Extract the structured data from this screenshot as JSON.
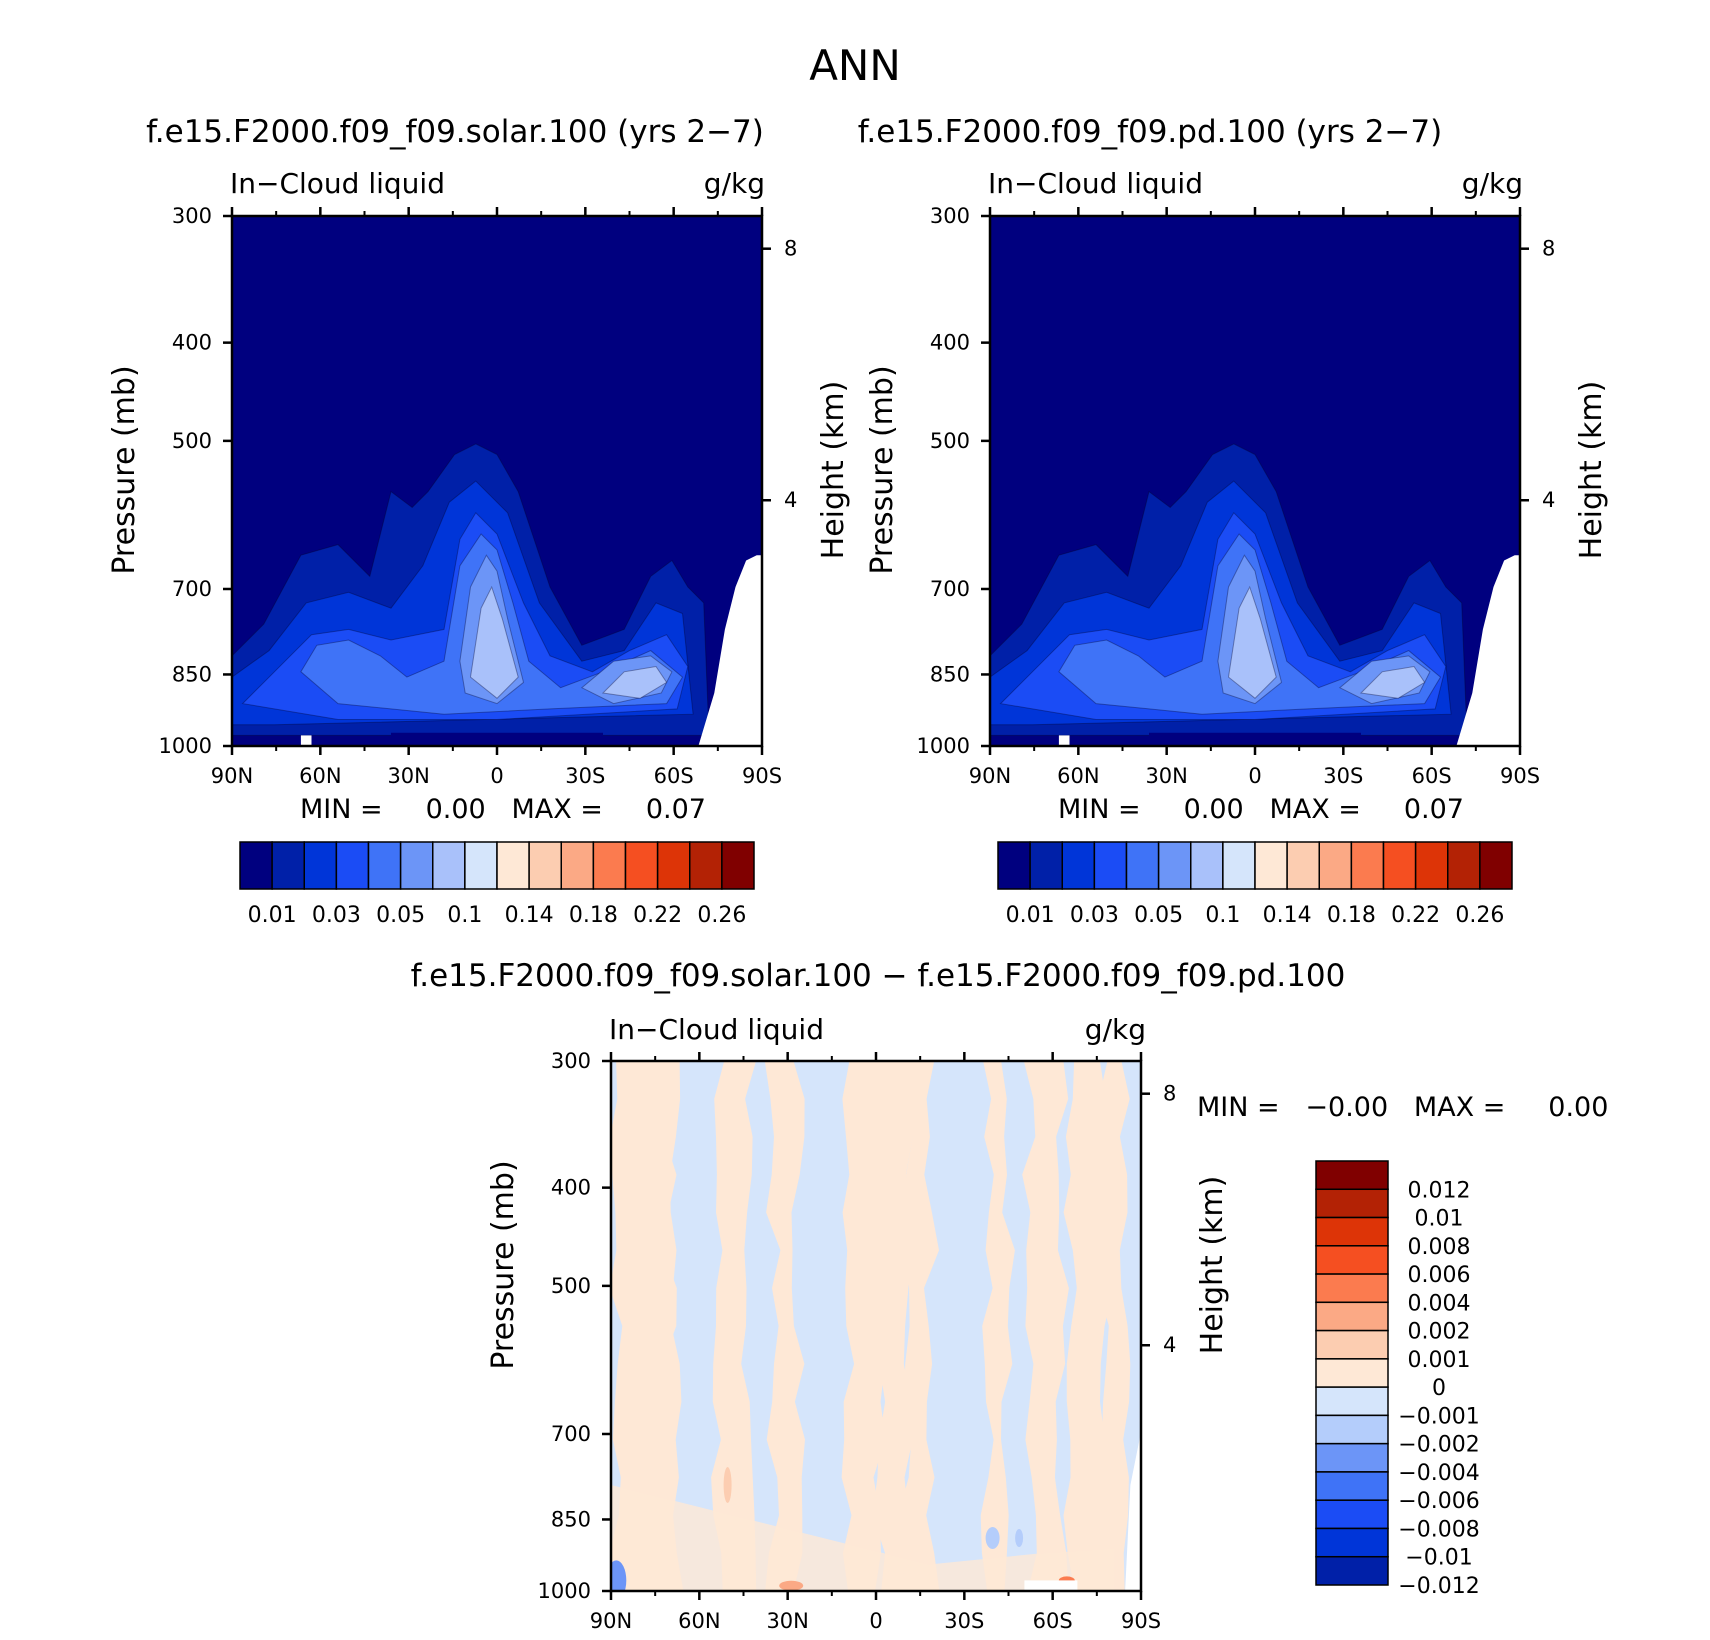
{
  "figure_title": "ANN",
  "colors": {
    "seq": [
      "#00007f",
      "#0020a8",
      "#0035d8",
      "#1b4cf5",
      "#3f73f7",
      "#6c95f7",
      "#a9c1fa",
      "#d5e5fb",
      "#fee8d6",
      "#fccdb1",
      "#fba985",
      "#fb7b4f",
      "#f54f21",
      "#dd3407",
      "#b32205",
      "#800000"
    ],
    "div": [
      "#00007f",
      "#0020a8",
      "#0035d8",
      "#1b4cf5",
      "#3f73f7",
      "#6c95f7",
      "#b4cdfb",
      "#d5e5fb",
      "#fee8d6",
      "#fccdb1",
      "#fba985",
      "#fb7b4f",
      "#f54f21",
      "#dd3407",
      "#b32205",
      "#800000"
    ]
  },
  "panels": {
    "p1": {
      "title": "f.e15.F2000.f09_f09.solar.100 (yrs 2−7)",
      "left_label": "In−Cloud liquid",
      "right_label": "g/kg",
      "ylabel": "Pressure (mb)",
      "ylabel_right": "Height (km)",
      "minmax": "MIN =     0.00   MAX =     0.07"
    },
    "p2": {
      "title": "f.e15.F2000.f09_f09.pd.100 (yrs 2−7)",
      "left_label": "In−Cloud liquid",
      "right_label": "g/kg",
      "ylabel": "Pressure (mb)",
      "ylabel_right": "Height (km)",
      "minmax": "MIN =     0.00   MAX =     0.07"
    },
    "p3": {
      "title": "f.e15.F2000.f09_f09.solar.100 − f.e15.F2000.f09_f09.pd.100",
      "left_label": "In−Cloud liquid",
      "right_label": "g/kg",
      "ylabel": "Pressure (mb)",
      "ylabel_right": "Height (km)",
      "minmax": "MIN =   −0.00   MAX =     0.00"
    }
  },
  "chart_data": [
    {
      "type": "heatmap",
      "title": "f.e15.F2000.f09_f09.solar.100 (yrs 2−7)",
      "xlabel": "",
      "ylabel": "Pressure (mb)",
      "ylabel_right": "Height (km)",
      "x_ticks": [
        "90N",
        "60N",
        "30N",
        "0",
        "30S",
        "60S",
        "90S"
      ],
      "y_ticks": [
        300,
        400,
        500,
        700,
        850,
        1000
      ],
      "y_right_ticks": [
        8,
        4
      ],
      "ylim": [
        1000,
        300
      ],
      "units": "g/kg",
      "min": 0.0,
      "max": 0.07,
      "levels": [
        "0.01",
        "0.03",
        "0.05",
        "0.1",
        "0.14",
        "0.18",
        "0.22",
        "0.26"
      ]
    },
    {
      "type": "heatmap",
      "title": "f.e15.F2000.f09_f09.pd.100 (yrs 2−7)",
      "xlabel": "",
      "ylabel": "Pressure (mb)",
      "ylabel_right": "Height (km)",
      "x_ticks": [
        "90N",
        "60N",
        "30N",
        "0",
        "30S",
        "60S",
        "90S"
      ],
      "y_ticks": [
        300,
        400,
        500,
        700,
        850,
        1000
      ],
      "y_right_ticks": [
        8,
        4
      ],
      "ylim": [
        1000,
        300
      ],
      "units": "g/kg",
      "min": 0.0,
      "max": 0.07,
      "levels": [
        "0.01",
        "0.03",
        "0.05",
        "0.1",
        "0.14",
        "0.18",
        "0.22",
        "0.26"
      ]
    },
    {
      "type": "heatmap",
      "title": "f.e15.F2000.f09_f09.solar.100 − f.e15.F2000.f09_f09.pd.100",
      "xlabel": "",
      "ylabel": "Pressure (mb)",
      "ylabel_right": "Height (km)",
      "x_ticks": [
        "90N",
        "60N",
        "30N",
        "0",
        "30S",
        "60S",
        "90S"
      ],
      "y_ticks": [
        300,
        400,
        500,
        700,
        850,
        1000
      ],
      "y_right_ticks": [
        8,
        4
      ],
      "ylim": [
        1000,
        300
      ],
      "units": "g/kg",
      "min": -0.0,
      "max": 0.0,
      "levels": [
        "0.012",
        "0.01",
        "0.008",
        "0.006",
        "0.004",
        "0.002",
        "0.001",
        "0",
        "−0.001",
        "−0.002",
        "−0.004",
        "−0.006",
        "−0.008",
        "−0.01",
        "−0.012"
      ]
    }
  ]
}
